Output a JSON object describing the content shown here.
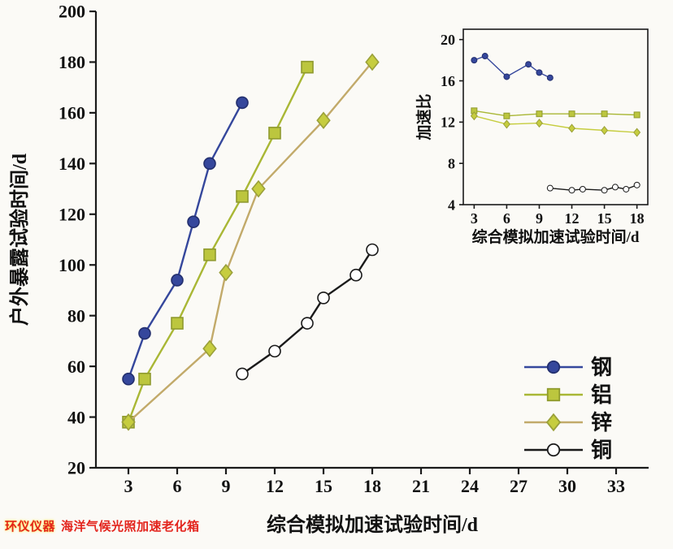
{
  "chart_data": [
    {
      "id": "main",
      "type": "line",
      "title": "",
      "xlabel": "综合模拟加速试验时间/d",
      "ylabel": "户外暴露试验时间/d",
      "xlim": [
        1,
        35
      ],
      "ylim": [
        20,
        200
      ],
      "xticks": [
        3,
        6,
        9,
        12,
        15,
        18,
        21,
        24,
        27,
        30,
        33
      ],
      "yticks": [
        20,
        40,
        60,
        80,
        100,
        120,
        140,
        160,
        180,
        200
      ],
      "grid": false,
      "legend_position": "lower right",
      "series": [
        {
          "key": "steel",
          "name": "钢",
          "color": "#35479c",
          "marker": "circle",
          "marker_fill": "#35479c",
          "marker_stroke": "#232f6e",
          "x": [
            3,
            4,
            6,
            7,
            8,
            10
          ],
          "y": [
            55,
            73,
            94,
            117,
            140,
            164
          ]
        },
        {
          "key": "aluminum",
          "name": "铝",
          "color": "#a9b735",
          "marker": "square",
          "marker_fill": "#bcc63e",
          "marker_stroke": "#8f9a2e",
          "x": [
            3,
            4,
            6,
            8,
            10,
            12,
            14
          ],
          "y": [
            38,
            55,
            77,
            104,
            127,
            152,
            178
          ]
        },
        {
          "key": "zinc",
          "name": "锌",
          "color": "#c2aa6a",
          "marker": "diamond",
          "marker_fill": "#c6cd3f",
          "marker_stroke": "#9aa03a",
          "x": [
            3,
            8,
            9,
            11,
            15,
            18
          ],
          "y": [
            38,
            67,
            97,
            130,
            157,
            180
          ]
        },
        {
          "key": "copper",
          "name": "铜",
          "color": "#1a1a1a",
          "marker": "circle-open",
          "marker_fill": "#ffffff",
          "marker_stroke": "#1a1a1a",
          "x": [
            10,
            12,
            14,
            15,
            17,
            18
          ],
          "y": [
            57,
            66,
            77,
            87,
            96,
            106
          ]
        }
      ]
    },
    {
      "id": "inset",
      "type": "line",
      "title": "",
      "xlabel": "综合模拟加速试验时间/d",
      "ylabel": "加速比",
      "xlim": [
        2,
        19
      ],
      "ylim": [
        4,
        21
      ],
      "xticks": [
        3,
        6,
        9,
        12,
        15,
        18
      ],
      "yticks": [
        4,
        8,
        12,
        16,
        20
      ],
      "grid": false,
      "series": [
        {
          "key": "steel",
          "name": "钢",
          "color": "#35479c",
          "marker": "circle",
          "marker_fill": "#35479c",
          "marker_stroke": "#232f6e",
          "x": [
            3,
            4,
            6,
            8,
            9,
            10
          ],
          "y": [
            18.0,
            18.4,
            16.4,
            17.6,
            16.8,
            16.3
          ]
        },
        {
          "key": "aluminum",
          "name": "铝",
          "color": "#a9b735",
          "marker": "square",
          "marker_fill": "#bcc63e",
          "marker_stroke": "#8f9a2e",
          "x": [
            3,
            6,
            9,
            12,
            15,
            18
          ],
          "y": [
            13.1,
            12.6,
            12.8,
            12.8,
            12.8,
            12.7
          ]
        },
        {
          "key": "zinc",
          "name": "锌",
          "color": "#c6cd3f",
          "marker": "diamond",
          "marker_fill": "#c6cd3f",
          "marker_stroke": "#9aa03a",
          "x": [
            3,
            6,
            9,
            12,
            15,
            18
          ],
          "y": [
            12.6,
            11.8,
            11.9,
            11.4,
            11.2,
            11.0
          ]
        },
        {
          "key": "copper",
          "name": "铜",
          "color": "#1a1a1a",
          "marker": "circle-open",
          "marker_fill": "#ffffff",
          "marker_stroke": "#1a1a1a",
          "x": [
            10,
            12,
            13,
            15,
            16,
            17,
            18
          ],
          "y": [
            5.6,
            5.4,
            5.5,
            5.4,
            5.7,
            5.5,
            5.9
          ]
        }
      ]
    }
  ],
  "legend": {
    "items": [
      {
        "label": "钢"
      },
      {
        "label": "铝"
      },
      {
        "label": "锌"
      },
      {
        "label": "铜"
      }
    ]
  },
  "watermark": {
    "brand": "环仪仪器",
    "product": "海洋气候光照加速老化箱"
  }
}
